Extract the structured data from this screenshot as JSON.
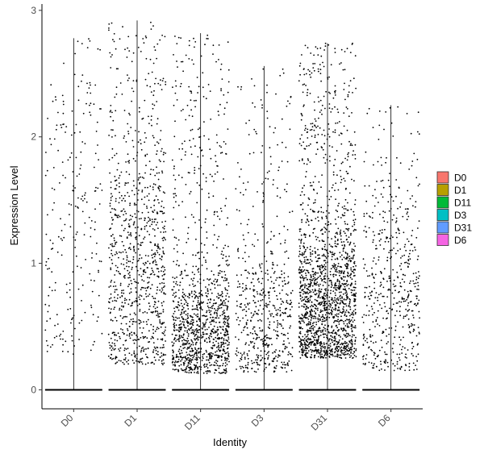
{
  "chart_data": {
    "type": "scatter",
    "subtype": "violin-jitter",
    "xlabel": "Identity",
    "ylabel": "Expression Level",
    "categories": [
      "D0",
      "D1",
      "D11",
      "D3",
      "D31",
      "D6"
    ],
    "ylim": [
      -0.15,
      3.05
    ],
    "yticks": [
      0,
      1,
      2,
      3
    ],
    "ytick_labels": [
      "0",
      "1",
      "2",
      "3"
    ],
    "grid": false,
    "legend_position": "right",
    "legend": [
      {
        "label": "D0",
        "color": "#F8766D"
      },
      {
        "label": "D1",
        "color": "#B79F00"
      },
      {
        "label": "D11",
        "color": "#00BA38"
      },
      {
        "label": "D3",
        "color": "#00BFC4"
      },
      {
        "label": "D31",
        "color": "#619CFF"
      },
      {
        "label": "D6",
        "color": "#F564E3"
      }
    ],
    "series": [
      {
        "category": "D0",
        "max": 2.78,
        "n_nonzero": 230,
        "low": 0.28,
        "median": 1.25
      },
      {
        "category": "D1",
        "max": 2.92,
        "n_nonzero": 950,
        "low": 0.2,
        "median": 0.9
      },
      {
        "category": "D11",
        "max": 2.82,
        "n_nonzero": 1150,
        "low": 0.13,
        "median": 0.45
      },
      {
        "category": "D3",
        "max": 2.56,
        "n_nonzero": 560,
        "low": 0.14,
        "median": 0.5
      },
      {
        "category": "D31",
        "max": 2.74,
        "n_nonzero": 1750,
        "low": 0.25,
        "median": 0.68
      },
      {
        "category": "D6",
        "max": 2.25,
        "n_nonzero": 520,
        "low": 0.15,
        "median": 0.7
      }
    ],
    "point_color": "#000000"
  }
}
